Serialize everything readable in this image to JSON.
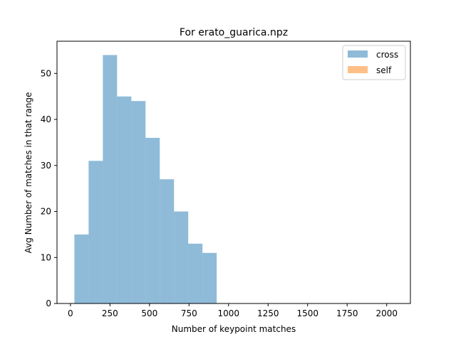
{
  "chart_data": {
    "type": "bar",
    "title": "For erato_guarica.npz",
    "xlabel": "Number of keypoint matches",
    "ylabel": "Avg Number of matches in that range",
    "xlim": [
      -85,
      2150
    ],
    "ylim": [
      0,
      57
    ],
    "xticks": [
      0,
      250,
      500,
      750,
      1000,
      1250,
      1500,
      1750,
      2000
    ],
    "yticks": [
      0,
      10,
      20,
      30,
      40,
      50
    ],
    "grid": false,
    "legend_position": "top-right",
    "series": [
      {
        "name": "cross",
        "color": "#1f77b4",
        "alpha": 0.5,
        "bins": [
          {
            "x0": 25,
            "x1": 115,
            "value": 15
          },
          {
            "x0": 115,
            "x1": 205,
            "value": 31
          },
          {
            "x0": 205,
            "x1": 295,
            "value": 54
          },
          {
            "x0": 295,
            "x1": 385,
            "value": 45
          },
          {
            "x0": 385,
            "x1": 475,
            "value": 44
          },
          {
            "x0": 475,
            "x1": 565,
            "value": 36
          },
          {
            "x0": 565,
            "x1": 655,
            "value": 27
          },
          {
            "x0": 655,
            "x1": 745,
            "value": 20
          },
          {
            "x0": 745,
            "x1": 835,
            "value": 13
          },
          {
            "x0": 835,
            "x1": 925,
            "value": 11
          }
        ]
      },
      {
        "name": "self",
        "color": "#ff7f0e",
        "alpha": 0.5,
        "bins": []
      }
    ]
  }
}
